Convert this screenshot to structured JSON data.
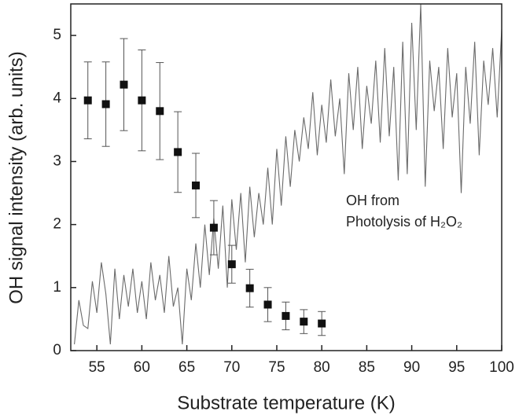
{
  "chart_data": {
    "type": "scatter",
    "xlabel": "Substrate temperature (K)",
    "ylabel": "OH signal intensity (arb. units)",
    "annotation": [
      "OH from",
      "Photolysis of H₂O₂"
    ],
    "xlim": [
      52.1,
      100
    ],
    "ylim": [
      0,
      5.5
    ],
    "xticks": [
      55,
      60,
      65,
      70,
      75,
      80,
      85,
      90,
      95,
      100
    ],
    "yticks": [
      0,
      1,
      2,
      3,
      4,
      5
    ],
    "series": [
      {
        "style": "line",
        "color": "#6a6a6a",
        "x": [
          52.5,
          53,
          53.5,
          54,
          54.5,
          55,
          55.5,
          56,
          56.5,
          57,
          57.5,
          58,
          58.5,
          59,
          59.5,
          60,
          60.5,
          61,
          61.5,
          62,
          62.5,
          63,
          63.5,
          64,
          64.5,
          65,
          65.5,
          66,
          66.5,
          67,
          67.5,
          68,
          68.5,
          69,
          69.5,
          70,
          70.5,
          71,
          71.5,
          72,
          72.5,
          73,
          73.5,
          74,
          74.5,
          75,
          75.5,
          76,
          76.5,
          77,
          77.5,
          78,
          78.5,
          79,
          79.5,
          80,
          80.5,
          81,
          81.5,
          82,
          82.5,
          83,
          83.5,
          84,
          84.5,
          85,
          85.5,
          86,
          86.5,
          87,
          87.5,
          88,
          88.5,
          89,
          89.5,
          90,
          90.5,
          91,
          91.5,
          92,
          92.5,
          93,
          93.5,
          94,
          94.5,
          95,
          95.5,
          96,
          96.5,
          97,
          97.5,
          98,
          98.5,
          99,
          99.5,
          100
        ],
        "values": [
          0.1,
          0.8,
          0.4,
          0.35,
          1.1,
          0.6,
          1.4,
          0.9,
          0.1,
          1.3,
          0.5,
          1.2,
          0.7,
          1.3,
          0.6,
          1.1,
          0.5,
          1.4,
          0.8,
          1.2,
          0.6,
          1.5,
          0.7,
          1.0,
          0.1,
          1.3,
          0.8,
          1.7,
          1.0,
          2.0,
          1.2,
          2.1,
          1.3,
          2.3,
          1.0,
          2.4,
          1.6,
          2.5,
          1.4,
          2.6,
          1.8,
          2.5,
          2.0,
          2.9,
          2.0,
          3.2,
          2.3,
          3.4,
          2.6,
          3.5,
          3.0,
          3.7,
          3.2,
          4.1,
          3.1,
          3.9,
          3.3,
          4.3,
          3.4,
          4.0,
          2.8,
          4.4,
          3.5,
          4.5,
          3.2,
          4.2,
          3.6,
          4.6,
          3.3,
          4.8,
          3.4,
          4.5,
          2.7,
          4.9,
          2.8,
          5.2,
          3.5,
          5.5,
          2.6,
          4.6,
          3.8,
          4.5,
          3.2,
          4.8,
          3.7,
          4.4,
          2.5,
          4.5,
          3.6,
          4.9,
          3.1,
          4.6,
          3.9,
          4.8,
          3.7,
          5.1
        ]
      },
      {
        "style": "markers",
        "color": "#111111",
        "x": [
          54,
          56,
          58,
          60,
          62,
          64,
          66,
          68,
          70,
          72,
          74,
          76,
          78,
          80
        ],
        "values": [
          3.97,
          3.91,
          4.22,
          3.97,
          3.8,
          3.15,
          2.62,
          1.95,
          1.37,
          0.99,
          0.73,
          0.55,
          0.46,
          0.43
        ],
        "errors": [
          0.61,
          0.67,
          0.73,
          0.8,
          0.77,
          0.64,
          0.51,
          0.43,
          0.3,
          0.3,
          0.27,
          0.22,
          0.19,
          0.19
        ]
      }
    ]
  }
}
